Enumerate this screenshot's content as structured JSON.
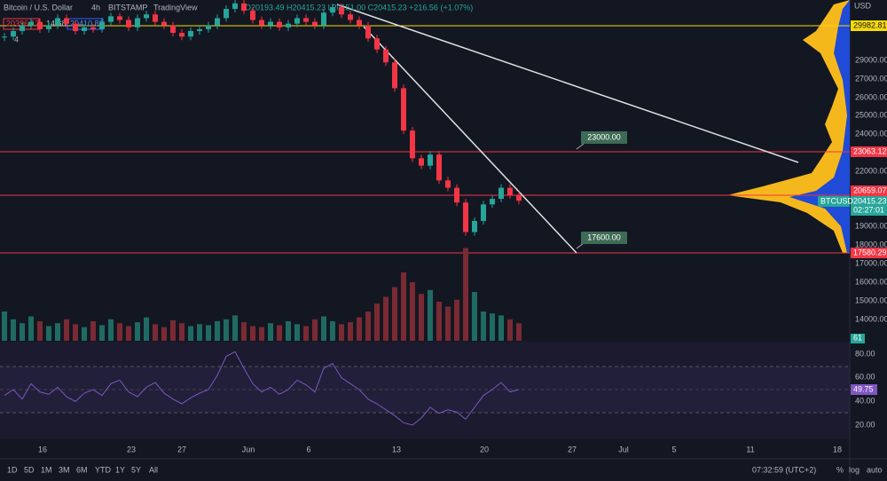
{
  "header": {
    "symbol": "Bitcoin / U.S. Dollar",
    "interval": "4h",
    "exchange": "BITSTAMP",
    "source": "TradingView",
    "ohlc": "O20193.49 H20415.23 L20151.00 C20415.23 +216.56 (+1.07%)",
    "sell": "20396.12",
    "spread": "14.68",
    "buy": "20410.80",
    "indicators": "4"
  },
  "price_axis": {
    "currency": "USD",
    "ticks": [
      "29000.00",
      "27000.00",
      "26000.00",
      "25000.00",
      "24000.00",
      "22000.00",
      "19000.00",
      "18000.00",
      "17000.00",
      "16000.00",
      "15000.00",
      "14000.00"
    ]
  },
  "price_tags": {
    "yellow": "29982.81",
    "red_top": "23063.12",
    "red_mid": "20659.07",
    "symbol": "BTCUSD",
    "last": "20415.23",
    "countdown": "02:27:01",
    "red_low": "17580.29",
    "volume": "61"
  },
  "rsi_axis": {
    "ticks": [
      "80.00",
      "60.00",
      "40.00",
      "20.00"
    ],
    "last": "49.75"
  },
  "drawings": {
    "upper": "23000.00",
    "lower": "17600.00"
  },
  "time_axis": [
    "16",
    "23",
    "27",
    "Jun",
    "6",
    "13",
    "20",
    "27",
    "Jul",
    "5",
    "11",
    "18"
  ],
  "toolbar": {
    "ranges": [
      "1D",
      "5D",
      "1M",
      "3M",
      "6M",
      "YTD",
      "1Y",
      "5Y",
      "All"
    ],
    "clock": "07:32:59 (UTC+2)",
    "percent": "%",
    "log": "log",
    "auto": "auto"
  },
  "candles": [
    29300,
    29600,
    29900,
    30100,
    29700,
    29900,
    30300,
    30000,
    29600,
    29800,
    29700,
    30100,
    30400,
    30200,
    29800,
    30300,
    30500,
    30100,
    29900,
    29500,
    29300,
    29600,
    29700,
    29900,
    30300,
    30800,
    31100,
    30700,
    30200,
    29900,
    30100,
    29800,
    30000,
    30300,
    30100,
    29900,
    30600,
    30900,
    30500,
    30200,
    29900,
    29200,
    28600,
    27900,
    26500,
    24200,
    22700,
    22300,
    22900,
    21500,
    21100,
    20300,
    18700,
    19300,
    20200,
    20500,
    21100,
    20700,
    20400
  ],
  "volume": [
    30,
    22,
    18,
    25,
    20,
    15,
    18,
    22,
    17,
    14,
    20,
    16,
    22,
    18,
    15,
    19,
    24,
    17,
    14,
    21,
    18,
    15,
    17,
    16,
    20,
    22,
    26,
    19,
    15,
    14,
    18,
    16,
    20,
    17,
    15,
    22,
    25,
    20,
    17,
    19,
    24,
    30,
    38,
    45,
    55,
    70,
    60,
    48,
    52,
    40,
    35,
    42,
    95,
    50,
    30,
    28,
    26,
    22,
    18
  ],
  "rsi": [
    45,
    50,
    42,
    55,
    48,
    46,
    52,
    44,
    40,
    47,
    50,
    45,
    55,
    58,
    48,
    44,
    52,
    56,
    47,
    42,
    38,
    43,
    47,
    50,
    62,
    78,
    82,
    68,
    55,
    48,
    52,
    46,
    50,
    58,
    54,
    48,
    68,
    72,
    60,
    55,
    50,
    42,
    38,
    33,
    28,
    22,
    20,
    26,
    35,
    30,
    33,
    31,
    25,
    35,
    45,
    50,
    56,
    48,
    50
  ]
}
